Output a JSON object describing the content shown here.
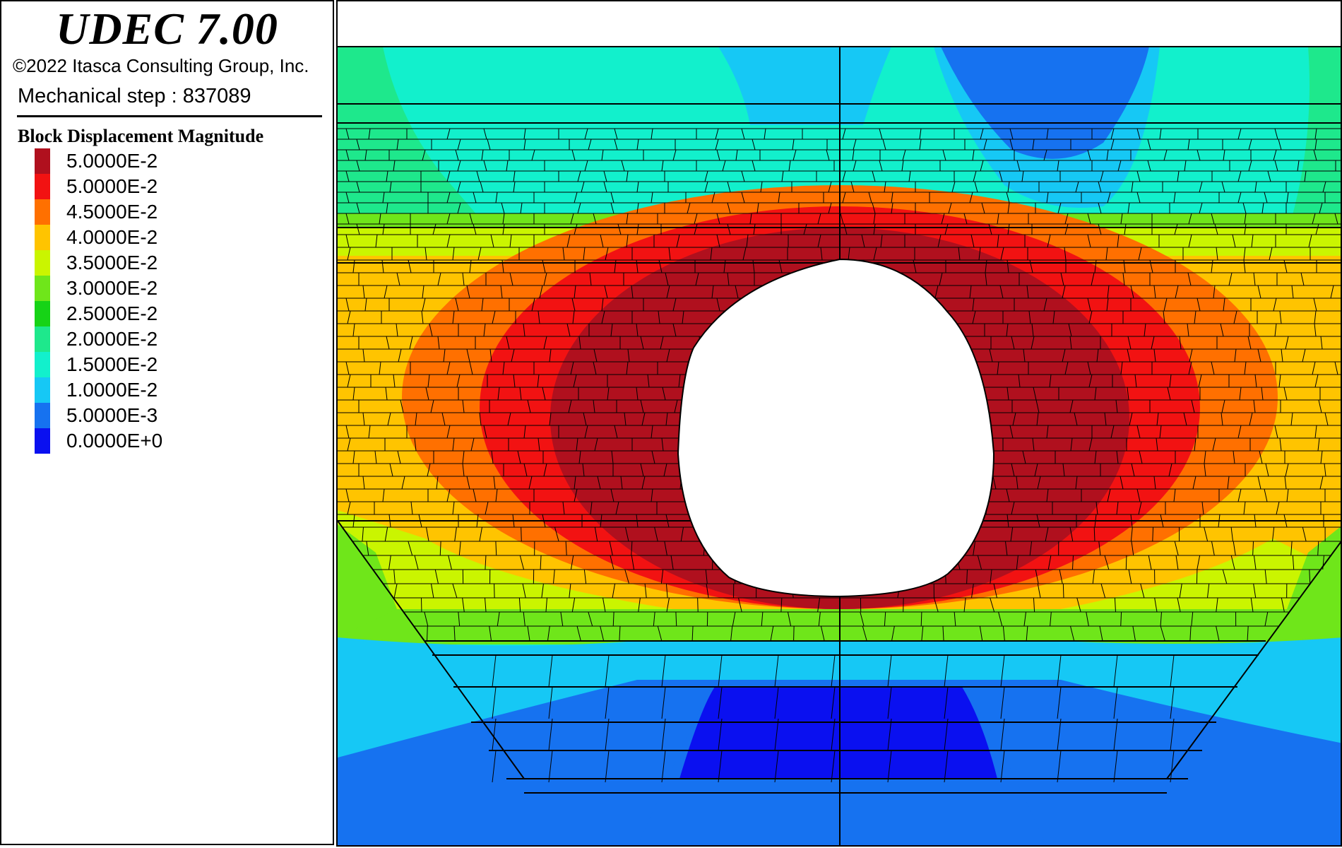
{
  "app": {
    "title": "UDEC 7.00",
    "copyright": "©2022 Itasca Consulting Group, Inc.",
    "step_label": "Mechanical step :",
    "step_value": "837089"
  },
  "legend": {
    "title": "Block Displacement Magnitude",
    "items": [
      {
        "label": "5.0000E-2",
        "color": "#b0101e"
      },
      {
        "label": "5.0000E-2",
        "color": "#f21212"
      },
      {
        "label": "4.5000E-2",
        "color": "#ff7000"
      },
      {
        "label": "4.0000E-2",
        "color": "#ffc400"
      },
      {
        "label": "3.5000E-2",
        "color": "#caf500"
      },
      {
        "label": "3.0000E-2",
        "color": "#6fe61a"
      },
      {
        "label": "2.5000E-2",
        "color": "#16d316"
      },
      {
        "label": "2.0000E-2",
        "color": "#1ee88c"
      },
      {
        "label": "1.5000E-2",
        "color": "#12f0cc"
      },
      {
        "label": "1.0000E-2",
        "color": "#16c8f5"
      },
      {
        "label": "5.0000E-3",
        "color": "#1672f0"
      },
      {
        "label": "0.0000E+0",
        "color": "#0a10f0"
      }
    ]
  },
  "plot": {
    "contour_variable": "Block Displacement Magnitude",
    "feature": "tunnel-excavation"
  }
}
